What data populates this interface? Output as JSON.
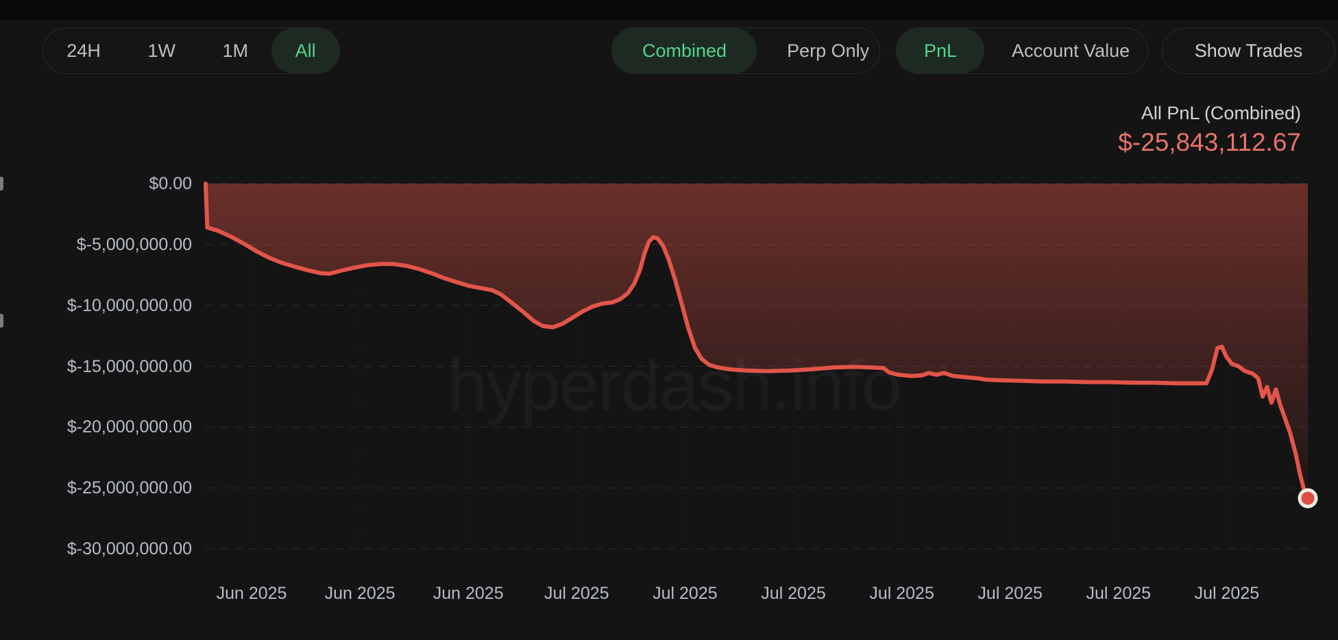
{
  "watermark": "hyperdash.info",
  "colors": {
    "accent_green": "#55d38d",
    "active_pill_bg": "#1d2a22",
    "pnl_negative": "#e8736c",
    "line": "#e25549",
    "dot_fill": "#e14b41",
    "dot_ring": "#f3ede3",
    "fill_top": "rgba(224,84,72,0.42)"
  },
  "toolbar": {
    "time_ranges": [
      {
        "label": "24H",
        "active": false
      },
      {
        "label": "1W",
        "active": false
      },
      {
        "label": "1M",
        "active": false
      },
      {
        "label": "All",
        "active": true
      }
    ],
    "source_modes": [
      {
        "label": "Combined",
        "active": true
      },
      {
        "label": "Perp Only",
        "active": false
      }
    ],
    "metric_modes": [
      {
        "label": "PnL",
        "active": true
      },
      {
        "label": "Account Value",
        "active": false
      }
    ],
    "show_trades": {
      "label": "Show Trades"
    }
  },
  "header": {
    "label": "All PnL (Combined)",
    "value": "$-25,843,112.67"
  },
  "chart_data": {
    "type": "area",
    "title": "All PnL (Combined)",
    "currency": "USD",
    "final_value_usd": -25843112.67,
    "ylim_usd": [
      -30000000,
      0
    ],
    "grid": true,
    "legend_position": "none",
    "y_tick_labels": [
      "$0.00",
      "$-5,000,000.00",
      "$-10,000,000.00",
      "$-15,000,000.00",
      "$-20,000,000.00",
      "$-25,000,000.00",
      "$-30,000,000.00"
    ],
    "x_tick_labels": [
      "Jun 2025",
      "Jun 2025",
      "Jun 2025",
      "Jul 2025",
      "Jul 2025",
      "Jul 2025",
      "Jul 2025",
      "Jul 2025",
      "Jul 2025",
      "Jul 2025"
    ],
    "series": [
      {
        "name": "All PnL (Combined)",
        "point_format": "[x_percent_of_range, pnl_million_usd]",
        "points": [
          [
            0,
            0
          ],
          [
            0.15,
            -3.6
          ],
          [
            1.2,
            -3.9
          ],
          [
            2.4,
            -4.4
          ],
          [
            3.6,
            -5.0
          ],
          [
            4.7,
            -5.6
          ],
          [
            5.8,
            -6.1
          ],
          [
            6.9,
            -6.5
          ],
          [
            8,
            -6.8
          ],
          [
            9.2,
            -7.1
          ],
          [
            10.4,
            -7.35
          ],
          [
            11.2,
            -7.4
          ],
          [
            12.3,
            -7.15
          ],
          [
            13.5,
            -6.9
          ],
          [
            14.7,
            -6.7
          ],
          [
            15.8,
            -6.6
          ],
          [
            17,
            -6.6
          ],
          [
            18.2,
            -6.75
          ],
          [
            19.3,
            -7
          ],
          [
            20.5,
            -7.35
          ],
          [
            21.6,
            -7.75
          ],
          [
            22.8,
            -8.1
          ],
          [
            23.9,
            -8.4
          ],
          [
            25.1,
            -8.6
          ],
          [
            26,
            -8.75
          ],
          [
            26.8,
            -9.1
          ],
          [
            27.8,
            -9.8
          ],
          [
            28.9,
            -10.6
          ],
          [
            29.8,
            -11.3
          ],
          [
            30.6,
            -11.7
          ],
          [
            31.5,
            -11.8
          ],
          [
            32.4,
            -11.5
          ],
          [
            33.3,
            -11
          ],
          [
            34.2,
            -10.5
          ],
          [
            35.1,
            -10.1
          ],
          [
            36,
            -9.85
          ],
          [
            36.9,
            -9.75
          ],
          [
            37.6,
            -9.5
          ],
          [
            38.3,
            -9
          ],
          [
            38.9,
            -8.2
          ],
          [
            39.4,
            -7.1
          ],
          [
            39.8,
            -5.8
          ],
          [
            40.2,
            -4.8
          ],
          [
            40.6,
            -4.4
          ],
          [
            41,
            -4.5
          ],
          [
            41.5,
            -5.1
          ],
          [
            42,
            -6.2
          ],
          [
            42.6,
            -7.9
          ],
          [
            43.2,
            -9.9
          ],
          [
            43.8,
            -11.9
          ],
          [
            44.4,
            -13.5
          ],
          [
            45,
            -14.4
          ],
          [
            45.7,
            -14.9
          ],
          [
            46.5,
            -15.1
          ],
          [
            47.5,
            -15.25
          ],
          [
            49,
            -15.35
          ],
          [
            51,
            -15.4
          ],
          [
            53,
            -15.35
          ],
          [
            55,
            -15.25
          ],
          [
            57,
            -15.1
          ],
          [
            58.8,
            -15.05
          ],
          [
            60.5,
            -15.1
          ],
          [
            61.5,
            -15.15
          ],
          [
            62,
            -15.5
          ],
          [
            62.8,
            -15.7
          ],
          [
            64,
            -15.8
          ],
          [
            65,
            -15.75
          ],
          [
            65.6,
            -15.55
          ],
          [
            66.3,
            -15.7
          ],
          [
            67,
            -15.55
          ],
          [
            67.8,
            -15.8
          ],
          [
            69,
            -15.9
          ],
          [
            70.2,
            -16
          ],
          [
            70.7,
            -16.1
          ],
          [
            72,
            -16.15
          ],
          [
            74,
            -16.2
          ],
          [
            76,
            -16.25
          ],
          [
            78,
            -16.25
          ],
          [
            80,
            -16.3
          ],
          [
            82,
            -16.3
          ],
          [
            84,
            -16.35
          ],
          [
            86,
            -16.35
          ],
          [
            88,
            -16.4
          ],
          [
            90,
            -16.4
          ],
          [
            90.8,
            -16.4
          ],
          [
            91.3,
            -15.3
          ],
          [
            91.8,
            -13.5
          ],
          [
            92.2,
            -13.4
          ],
          [
            92.6,
            -14.2
          ],
          [
            93.1,
            -14.8
          ],
          [
            93.7,
            -15
          ],
          [
            94.3,
            -15.4
          ],
          [
            95,
            -15.6
          ],
          [
            95.5,
            -16
          ],
          [
            95.9,
            -17.5
          ],
          [
            96.3,
            -16.7
          ],
          [
            96.7,
            -18
          ],
          [
            97.1,
            -16.9
          ],
          [
            97.5,
            -18.2
          ],
          [
            97.9,
            -19.2
          ],
          [
            98.4,
            -20.5
          ],
          [
            98.9,
            -22.2
          ],
          [
            99.3,
            -23.9
          ],
          [
            99.7,
            -25.3
          ],
          [
            100,
            -25.843
          ]
        ]
      }
    ]
  }
}
